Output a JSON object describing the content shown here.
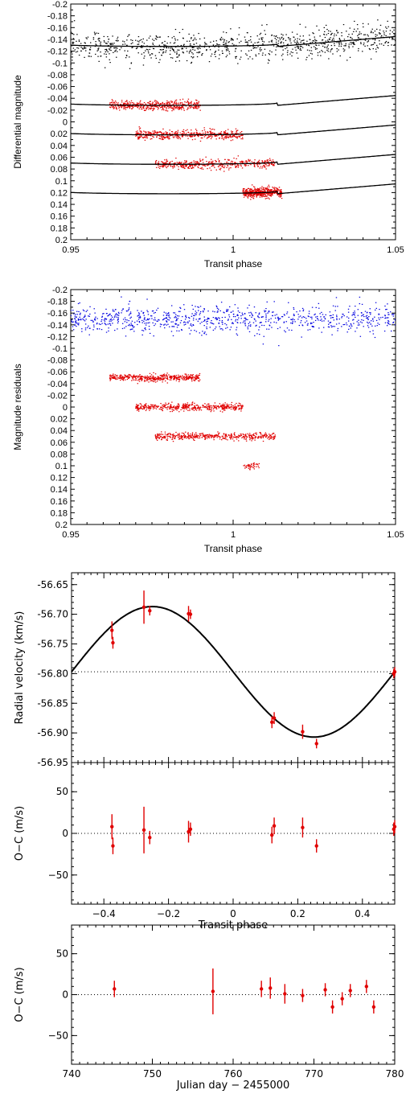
{
  "chart_data": [
    {
      "type": "scatter",
      "xlabel": "Transit phase",
      "ylabel": "Differential magnitude",
      "xlim": [
        0.95,
        1.05
      ],
      "ylim": [
        0.2,
        -0.2
      ],
      "x_ticks": [
        "0.95",
        "1",
        "1.05"
      ],
      "y_ticks": [
        "-0.2",
        "-0.18",
        "-0.16",
        "-0.14",
        "-0.12",
        "-0.1",
        "-0.08",
        "-0.06",
        "-0.04",
        "-0.02",
        "0",
        "0.02",
        "0.04",
        "0.06",
        "0.08",
        "0.1",
        "0.12",
        "0.14",
        "0.16",
        "0.18",
        "0.2"
      ],
      "series": [
        {
          "color": "#000000",
          "offset": -0.15,
          "x_range": [
            0.95,
            1.05
          ],
          "scatter": 0.012
        },
        {
          "color": "#e00000",
          "offset": -0.05,
          "x_range": [
            0.962,
            0.99
          ],
          "scatter": 0.004
        },
        {
          "color": "#e00000",
          "offset": 0.0,
          "x_range": [
            0.97,
            1.003
          ],
          "scatter": 0.004
        },
        {
          "color": "#e00000",
          "offset": 0.05,
          "x_range": [
            0.976,
            1.013
          ],
          "scatter": 0.004
        },
        {
          "color": "#e00000",
          "offset": 0.1,
          "x_range": [
            1.003,
            1.015
          ],
          "scatter": 0.004
        }
      ],
      "model": {
        "offsets": [
          -0.15,
          -0.05,
          0.0,
          0.05,
          0.1
        ],
        "depth": 0.022,
        "t1": 0.9385,
        "t2": 0.9465,
        "t3": 1.0135,
        "t4": 1.0615
      }
    },
    {
      "type": "scatter",
      "xlabel": "Transit phase",
      "ylabel": "Magnitude residuals",
      "xlim": [
        0.95,
        1.05
      ],
      "ylim": [
        0.2,
        -0.2
      ],
      "x_ticks": [
        "0.95",
        "1",
        "1.05"
      ],
      "y_ticks": [
        "-0.2",
        "-0.18",
        "-0.16",
        "-0.14",
        "-0.12",
        "-0.1",
        "-0.08",
        "-0.06",
        "-0.04",
        "-0.02",
        "0",
        "0.02",
        "0.04",
        "0.06",
        "0.08",
        "0.1",
        "0.12",
        "0.14",
        "0.16",
        "0.18",
        "0.2"
      ],
      "series": [
        {
          "color": "#0000e0",
          "offset": -0.15,
          "x_range": [
            0.95,
            1.05
          ],
          "scatter": 0.012
        },
        {
          "color": "#e00000",
          "offset": -0.05,
          "x_range": [
            0.962,
            0.99
          ],
          "scatter": 0.003
        },
        {
          "color": "#e00000",
          "offset": 0.0,
          "x_range": [
            0.97,
            1.003
          ],
          "scatter": 0.003
        },
        {
          "color": "#e00000",
          "offset": 0.05,
          "x_range": [
            0.976,
            1.013
          ],
          "scatter": 0.003
        },
        {
          "color": "#e00000",
          "offset": 0.1,
          "x_range": [
            1.003,
            1.008
          ],
          "scatter": 0.003
        }
      ]
    },
    {
      "type": "line",
      "xlabel": "",
      "ylabel": "Radial velocity (km/s)",
      "xlim": [
        -0.5,
        0.5
      ],
      "ylim": [
        -56.95,
        -56.63
      ],
      "y_ticks": [
        "-56.65",
        "-56.70",
        "-56.75",
        "-56.80",
        "-56.85",
        "-56.90",
        "-56.95"
      ],
      "gamma": -56.797,
      "K": 0.11,
      "points": [
        {
          "x": -0.375,
          "y": -56.727,
          "err": 0.015
        },
        {
          "x": -0.372,
          "y": -56.748,
          "err": 0.01
        },
        {
          "x": -0.276,
          "y": -56.688,
          "err": 0.028
        },
        {
          "x": -0.258,
          "y": -56.694,
          "err": 0.008
        },
        {
          "x": -0.138,
          "y": -56.699,
          "err": 0.013
        },
        {
          "x": -0.132,
          "y": -56.7,
          "err": 0.008
        },
        {
          "x": 0.12,
          "y": -56.882,
          "err": 0.01
        },
        {
          "x": 0.127,
          "y": -56.875,
          "err": 0.01
        },
        {
          "x": 0.215,
          "y": -56.898,
          "err": 0.012
        },
        {
          "x": 0.258,
          "y": -56.918,
          "err": 0.008
        },
        {
          "x": 0.497,
          "y": -56.8,
          "err": 0.008
        },
        {
          "x": 0.5,
          "y": -56.797,
          "err": 0.008
        }
      ]
    },
    {
      "type": "scatter",
      "xlabel": "Transit phase",
      "ylabel": "O−C (m/s)",
      "xlim": [
        -0.5,
        0.5
      ],
      "ylim": [
        -85,
        85
      ],
      "x_ticks": [
        "−0.4",
        "−0.2",
        "0",
        "0.2",
        "0.4"
      ],
      "y_ticks": [
        "50",
        "0",
        "−50"
      ],
      "points": [
        {
          "x": -0.375,
          "y": 8,
          "err": 15
        },
        {
          "x": -0.372,
          "y": -15,
          "err": 10
        },
        {
          "x": -0.276,
          "y": 4,
          "err": 28
        },
        {
          "x": -0.258,
          "y": -5,
          "err": 8
        },
        {
          "x": -0.138,
          "y": 2,
          "err": 13
        },
        {
          "x": -0.132,
          "y": 5,
          "err": 8
        },
        {
          "x": 0.12,
          "y": -2,
          "err": 10
        },
        {
          "x": 0.127,
          "y": 9,
          "err": 10
        },
        {
          "x": 0.215,
          "y": 7,
          "err": 12
        },
        {
          "x": 0.258,
          "y": -15,
          "err": 8
        },
        {
          "x": 0.497,
          "y": 5,
          "err": 8
        },
        {
          "x": 0.5,
          "y": 8,
          "err": 8
        }
      ]
    },
    {
      "type": "scatter",
      "xlabel": "Julian day − 2455000",
      "ylabel": "O−C (m/s)",
      "xlim": [
        740,
        780
      ],
      "ylim": [
        -85,
        85
      ],
      "x_ticks": [
        "740",
        "750",
        "760",
        "770",
        "780"
      ],
      "y_ticks": [
        "50",
        "0",
        "−50"
      ],
      "points": [
        {
          "x": 745.3,
          "y": 7,
          "err": 10
        },
        {
          "x": 757.5,
          "y": 4,
          "err": 28
        },
        {
          "x": 763.5,
          "y": 7,
          "err": 10
        },
        {
          "x": 764.6,
          "y": 8,
          "err": 13
        },
        {
          "x": 766.4,
          "y": 1,
          "err": 12
        },
        {
          "x": 768.6,
          "y": -1,
          "err": 8
        },
        {
          "x": 771.4,
          "y": 6,
          "err": 8
        },
        {
          "x": 772.3,
          "y": -15,
          "err": 8
        },
        {
          "x": 773.5,
          "y": -5,
          "err": 8
        },
        {
          "x": 774.5,
          "y": 5,
          "err": 8
        },
        {
          "x": 776.5,
          "y": 10,
          "err": 8
        },
        {
          "x": 777.4,
          "y": -15,
          "err": 8
        }
      ]
    }
  ]
}
